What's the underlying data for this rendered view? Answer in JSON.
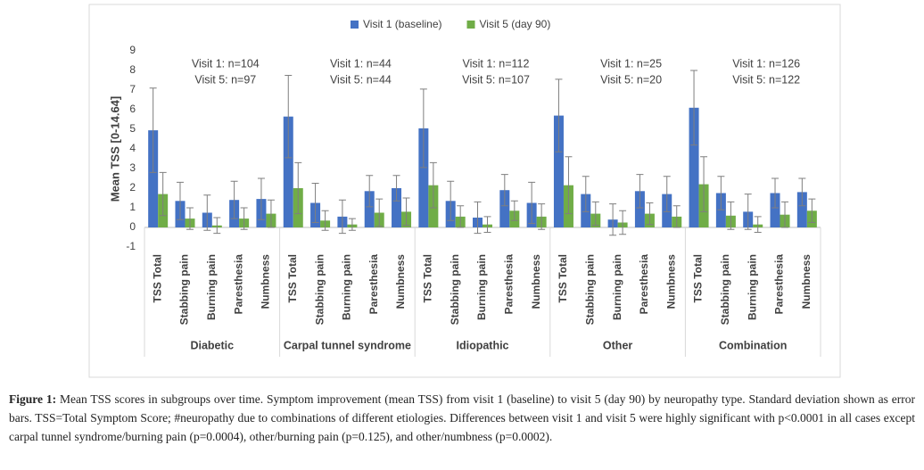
{
  "chart_data": {
    "type": "bar",
    "ylabel": "Mean TSS [0-14.64]",
    "categories": [
      "TSS Total",
      "Stabbing pain",
      "Burning pain",
      "Paresthesia",
      "Numbness",
      "TSS Total",
      "Stabbing pain",
      "Burning pain",
      "Paresthesia",
      "Numbness",
      "TSS Total",
      "Stabbing pain",
      "Burning pain",
      "Paresthesia",
      "Numbness",
      "TSS Total",
      "Stabbing pain",
      "Burning pain",
      "Paresthesia",
      "Numbness",
      "TSS Total",
      "Stabbing pain",
      "Burning pain",
      "Paresthesia",
      "Numbness"
    ],
    "groups": [
      {
        "name": "Diabetic",
        "notes": [
          "Visit 1: n=104",
          "Visit 5: n=97"
        ]
      },
      {
        "name": "Carpal tunnel syndrome",
        "notes": [
          "Visit 1: n=44",
          "Visit 5: n=44"
        ]
      },
      {
        "name": "Idiopathic",
        "notes": [
          "Visit 1: n=112",
          "Visit 5: n=107"
        ]
      },
      {
        "name": "Other",
        "notes": [
          "Visit 1: n=25",
          "Visit 5: n=20"
        ]
      },
      {
        "name": "Combination",
        "notes": [
          "Visit 1: n=126",
          "Visit 5: n=122"
        ]
      }
    ],
    "series": [
      {
        "name": "Visit 1 (baseline)",
        "color": "#4472c4",
        "values": [
          4.95,
          1.35,
          0.75,
          1.4,
          1.45,
          5.65,
          1.25,
          0.55,
          1.85,
          2.0,
          5.05,
          1.35,
          0.5,
          1.9,
          1.25,
          5.7,
          1.7,
          0.4,
          1.85,
          1.7,
          6.1,
          1.75,
          0.8,
          1.75,
          1.8
        ],
        "errors": [
          2.15,
          0.95,
          0.9,
          0.95,
          1.05,
          2.1,
          1.0,
          0.85,
          0.8,
          0.65,
          2.0,
          1.0,
          0.8,
          0.8,
          1.05,
          1.85,
          0.9,
          0.8,
          0.85,
          0.9,
          1.9,
          0.85,
          0.9,
          0.75,
          0.7
        ]
      },
      {
        "name": "Visit 5 (day 90)",
        "color": "#70ad47",
        "values": [
          1.7,
          0.45,
          0.1,
          0.45,
          0.7,
          2.0,
          0.35,
          0.15,
          0.75,
          0.8,
          2.15,
          0.55,
          0.15,
          0.85,
          0.55,
          2.15,
          0.7,
          0.25,
          0.7,
          0.55,
          2.2,
          0.6,
          0.15,
          0.65,
          0.85
        ],
        "errors": [
          1.1,
          0.55,
          0.4,
          0.55,
          0.7,
          1.3,
          0.5,
          0.3,
          0.7,
          0.7,
          1.15,
          0.55,
          0.4,
          0.5,
          0.65,
          1.45,
          0.6,
          0.6,
          0.55,
          0.55,
          1.4,
          0.7,
          0.4,
          0.65,
          0.6
        ]
      }
    ],
    "ylim": [
      -1,
      9
    ],
    "yticks": [
      -1,
      0,
      1,
      2,
      3,
      4,
      5,
      6,
      7,
      8,
      9
    ],
    "grid": false,
    "legend": "top"
  },
  "caption": {
    "label": "Figure 1:",
    "text": "Mean TSS scores in subgroups over time. Symptom improvement (mean TSS) from visit 1 (baseline) to visit 5 (day 90) by neuropathy type. Standard deviation shown as error bars. TSS=Total Symptom Score; #neuropathy due to combinations of different etiologies. Differences between visit 1 and visit 5 were highly significant with p<0.0001 in all cases except carpal tunnel syndrome/burning pain (p=0.0004), other/burning pain (p=0.125), and other/numbness (p=0.0002)."
  }
}
